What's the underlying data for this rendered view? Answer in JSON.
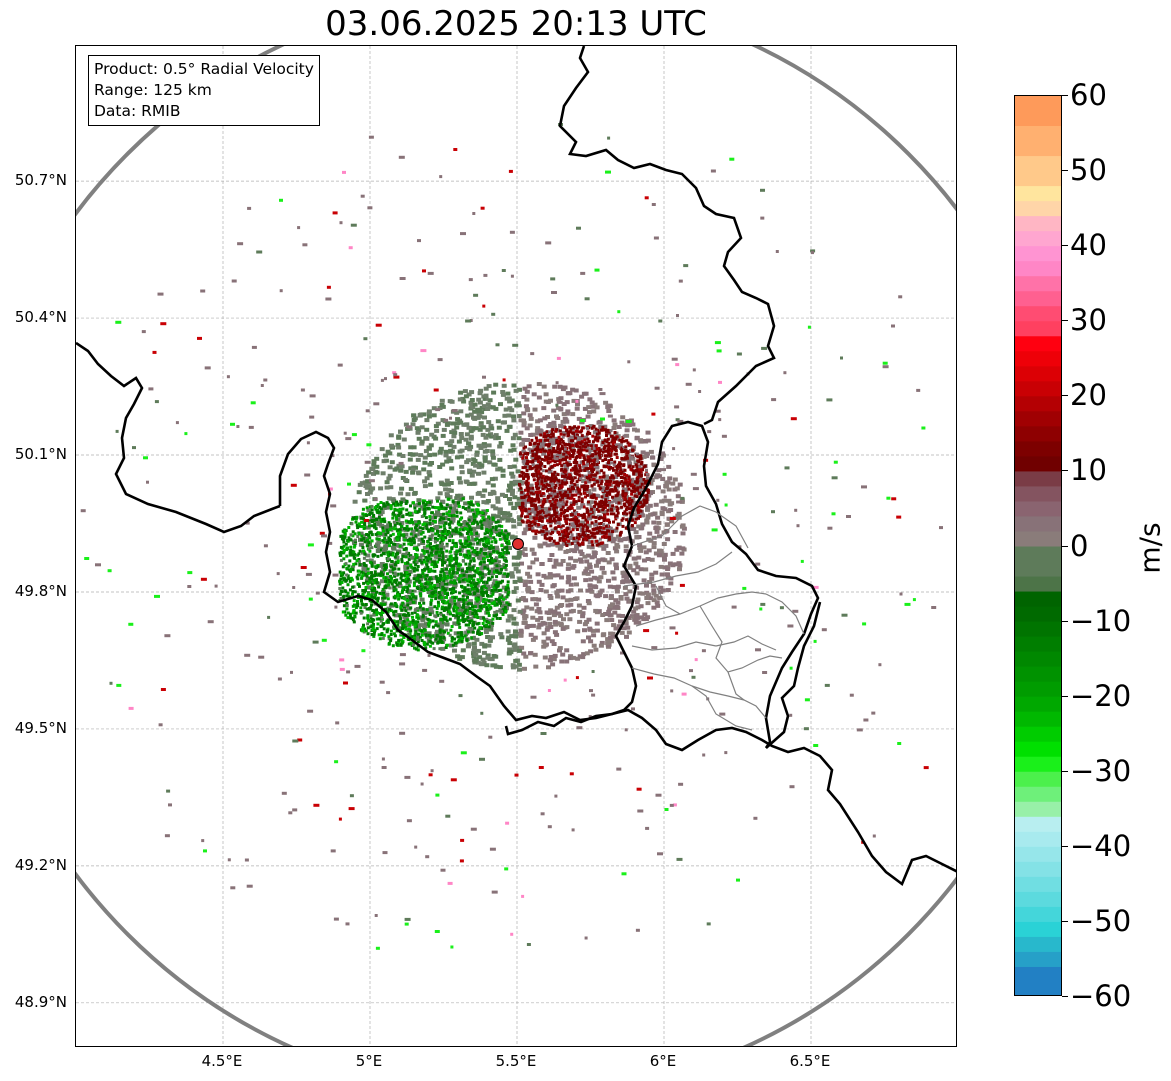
{
  "title": "03.06.2025 20:13 UTC",
  "info_box": {
    "product": "Product: 0.5° Radial Velocity",
    "range": "Range: 125 km",
    "data": "Data: RMIB"
  },
  "axes": {
    "lat_labels": [
      "50.7°N",
      "50.4°N",
      "50.1°N",
      "49.8°N",
      "49.5°N",
      "49.2°N",
      "48.9°N"
    ],
    "lat_values": [
      50.7,
      50.4,
      50.1,
      49.8,
      49.5,
      49.2,
      48.9
    ],
    "lon_labels": [
      "4.5°E",
      "5°E",
      "5.5°E",
      "6°E",
      "6.5°E"
    ],
    "lon_values": [
      4.5,
      5.0,
      5.5,
      6.0,
      6.5
    ],
    "lat_range": [
      48.8,
      50.99
    ],
    "lon_range": [
      4.0,
      7.0
    ],
    "grid": true
  },
  "radar_site": {
    "lon": 5.5,
    "lat": 49.914
  },
  "colorbar": {
    "unit": "m/s",
    "ticks": [
      "60",
      "50",
      "40",
      "30",
      "20",
      "10",
      "0",
      "−10",
      "−20",
      "−30",
      "−40",
      "−50",
      "−60"
    ],
    "tick_values": [
      60,
      50,
      40,
      30,
      20,
      10,
      0,
      -10,
      -20,
      -30,
      -40,
      -50,
      -60
    ],
    "range": [
      -60,
      60
    ],
    "bands": [
      {
        "from": 56,
        "to": 60,
        "color": "#fe9a5a"
      },
      {
        "from": 52,
        "to": 56,
        "color": "#ffb070"
      },
      {
        "from": 48,
        "to": 52,
        "color": "#ffc98a"
      },
      {
        "from": 46,
        "to": 48,
        "color": "#ffe59e"
      },
      {
        "from": 44,
        "to": 46,
        "color": "#ffd5a8"
      },
      {
        "from": 42,
        "to": 44,
        "color": "#ffb6c4"
      },
      {
        "from": 40,
        "to": 42,
        "color": "#ffa6d0"
      },
      {
        "from": 38,
        "to": 40,
        "color": "#ff94d2"
      },
      {
        "from": 36,
        "to": 38,
        "color": "#ff86c6"
      },
      {
        "from": 34,
        "to": 36,
        "color": "#ff72a8"
      },
      {
        "from": 32,
        "to": 34,
        "color": "#ff6090"
      },
      {
        "from": 30,
        "to": 32,
        "color": "#ff4c72"
      },
      {
        "from": 28,
        "to": 30,
        "color": "#ff4060"
      },
      {
        "from": 26,
        "to": 28,
        "color": "#ff0010"
      },
      {
        "from": 24,
        "to": 26,
        "color": "#ee0008"
      },
      {
        "from": 22,
        "to": 24,
        "color": "#dc0005"
      },
      {
        "from": 20,
        "to": 22,
        "color": "#c90004"
      },
      {
        "from": 18,
        "to": 20,
        "color": "#b40003"
      },
      {
        "from": 16,
        "to": 18,
        "color": "#a00002"
      },
      {
        "from": 14,
        "to": 16,
        "color": "#8e0001"
      },
      {
        "from": 12,
        "to": 14,
        "color": "#7d0000"
      },
      {
        "from": 10,
        "to": 12,
        "color": "#700000"
      },
      {
        "from": 8,
        "to": 10,
        "color": "#7a3c46"
      },
      {
        "from": 6,
        "to": 8,
        "color": "#845460"
      },
      {
        "from": 4,
        "to": 6,
        "color": "#8a6470"
      },
      {
        "from": 2,
        "to": 4,
        "color": "#887278"
      },
      {
        "from": 0,
        "to": 2,
        "color": "#8a7c7a"
      },
      {
        "from": -2,
        "to": 0,
        "color": "#6f7f6b"
      },
      {
        "from": -4,
        "to": 0,
        "color": "#5e7b5a"
      },
      {
        "from": -6,
        "to": -4,
        "color": "#4d7448"
      },
      {
        "from": -8,
        "to": -6,
        "color": "#006400"
      },
      {
        "from": -10,
        "to": -8,
        "color": "#006a00"
      },
      {
        "from": -12,
        "to": -10,
        "color": "#007400"
      },
      {
        "from": -14,
        "to": -12,
        "color": "#007e00"
      },
      {
        "from": -16,
        "to": -14,
        "color": "#008800"
      },
      {
        "from": -18,
        "to": -16,
        "color": "#009200"
      },
      {
        "from": -20,
        "to": -18,
        "color": "#009c00"
      },
      {
        "from": -22,
        "to": -20,
        "color": "#00a800"
      },
      {
        "from": -24,
        "to": -22,
        "color": "#00b800"
      },
      {
        "from": -26,
        "to": -24,
        "color": "#00cc00"
      },
      {
        "from": -28,
        "to": -26,
        "color": "#00e000"
      },
      {
        "from": -30,
        "to": -28,
        "color": "#1af01a"
      },
      {
        "from": -32,
        "to": -30,
        "color": "#4cf04c"
      },
      {
        "from": -34,
        "to": -32,
        "color": "#6ef07a"
      },
      {
        "from": -36,
        "to": -34,
        "color": "#98f0a8"
      },
      {
        "from": -38,
        "to": -36,
        "color": "#b8eef0"
      },
      {
        "from": -40,
        "to": -38,
        "color": "#a8eaee"
      },
      {
        "from": -42,
        "to": -40,
        "color": "#96e6ea"
      },
      {
        "from": -44,
        "to": -42,
        "color": "#84e2e6"
      },
      {
        "from": -46,
        "to": -44,
        "color": "#70dee2"
      },
      {
        "from": -48,
        "to": -46,
        "color": "#5cdade"
      },
      {
        "from": -50,
        "to": -48,
        "color": "#44d6da"
      },
      {
        "from": -52,
        "to": -50,
        "color": "#2ad2d6"
      },
      {
        "from": -54,
        "to": -52,
        "color": "#28b8cc"
      },
      {
        "from": -56,
        "to": -54,
        "color": "#26a0c8"
      },
      {
        "from": -60,
        "to": -56,
        "color": "#2280c4"
      }
    ]
  },
  "colors": {
    "range_ring": "#808080",
    "border_country": "#000000",
    "border_region": "#808080",
    "gridline": "#b0b0b0",
    "site_marker": "#e03030",
    "inbound_dark": "#007a00",
    "inbound_light": "#5e7b5a",
    "outbound_dark": "#7d0000",
    "outbound_light": "#887278"
  }
}
